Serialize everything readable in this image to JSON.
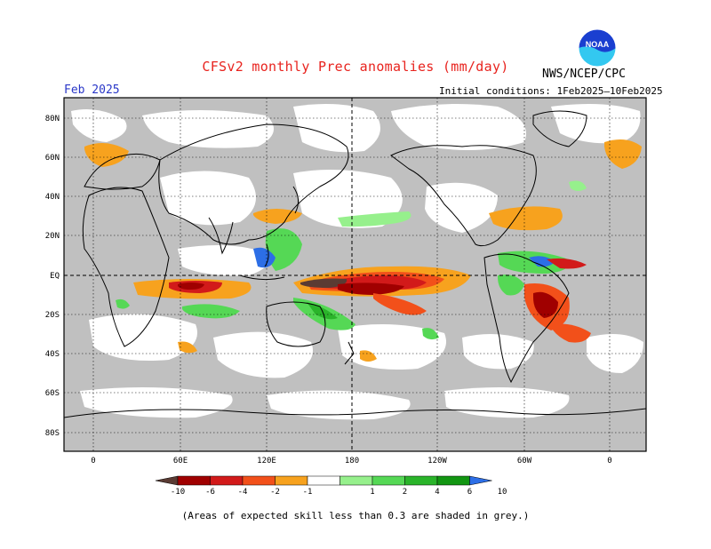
{
  "header": {
    "title": "CFSv2 monthly Prec anomalies (mm/day)",
    "agency": "NWS/NCEP/CPC",
    "month": "Feb 2025",
    "initial_conditions": "Initial conditions: 1Feb2025–10Feb2025",
    "logo_text": "NOAA"
  },
  "map": {
    "lat_labels": [
      "80N",
      "60N",
      "40N",
      "20N",
      "EQ",
      "20S",
      "40S",
      "60S",
      "80S"
    ],
    "lon_labels": [
      "0",
      "60E",
      "120E",
      "180",
      "120W",
      "60W",
      "0"
    ]
  },
  "colorbar": {
    "labels": [
      "-10",
      "-6",
      "-4",
      "-2",
      "-1",
      "1",
      "2",
      "4",
      "6",
      "10"
    ],
    "colors": [
      "#5a3b33",
      "#a00000",
      "#d21a1a",
      "#f2501a",
      "#f7a21e",
      "#ffffff",
      "#96f08c",
      "#55d855",
      "#2ab42a",
      "#129612",
      "#2c6ee6"
    ]
  },
  "footer": {
    "note": "(Areas of expected skill less than 0.3 are shaded in grey.)"
  },
  "colors": {
    "grey_mask": "#c0c0c0",
    "title": "#e8231e",
    "month": "#2a37c8"
  }
}
